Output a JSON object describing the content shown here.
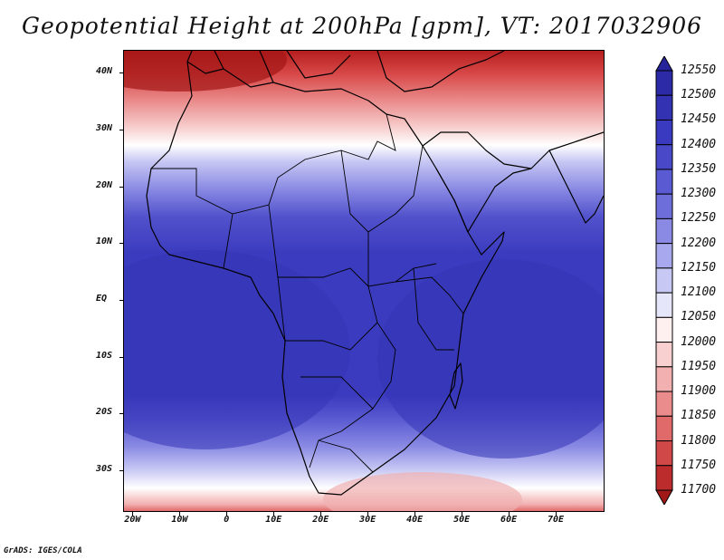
{
  "title": "Geopotential Height at 200hPa [gpm], VT: 2017032906",
  "credit": "GrADS: IGES/COLA",
  "map": {
    "lat_labels": [
      "40N",
      "30N",
      "20N",
      "10N",
      "EQ",
      "10S",
      "20S",
      "30S"
    ],
    "lon_labels": [
      "20W",
      "10W",
      "0",
      "10E",
      "20E",
      "30E",
      "40E",
      "50E",
      "60E",
      "70E"
    ],
    "lat_values": [
      40,
      30,
      20,
      10,
      0,
      -10,
      -20,
      -30
    ],
    "lon_values": [
      -20,
      -10,
      0,
      10,
      20,
      30,
      40,
      50,
      60,
      70
    ],
    "lon_range": [
      -22,
      80
    ],
    "lat_range": [
      -37,
      44
    ]
  },
  "colorbar": {
    "labels": [
      "12550",
      "12500",
      "12450",
      "12400",
      "12350",
      "12300",
      "12250",
      "12200",
      "12150",
      "12100",
      "12050",
      "12000",
      "11950",
      "11900",
      "11850",
      "11800",
      "11750",
      "11700"
    ],
    "colors": [
      "#27239a",
      "#2c2aa6",
      "#3332b3",
      "#3a3ac0",
      "#4848c8",
      "#5a5ad2",
      "#6e6edb",
      "#8a8ae4",
      "#a8a8ee",
      "#c8c8f4",
      "#e6e6fa",
      "#fff0f0",
      "#f8d0d0",
      "#f2b0b0",
      "#ea8c8c",
      "#e06a6a",
      "#d04848",
      "#bc2c2c",
      "#a11818"
    ]
  }
}
